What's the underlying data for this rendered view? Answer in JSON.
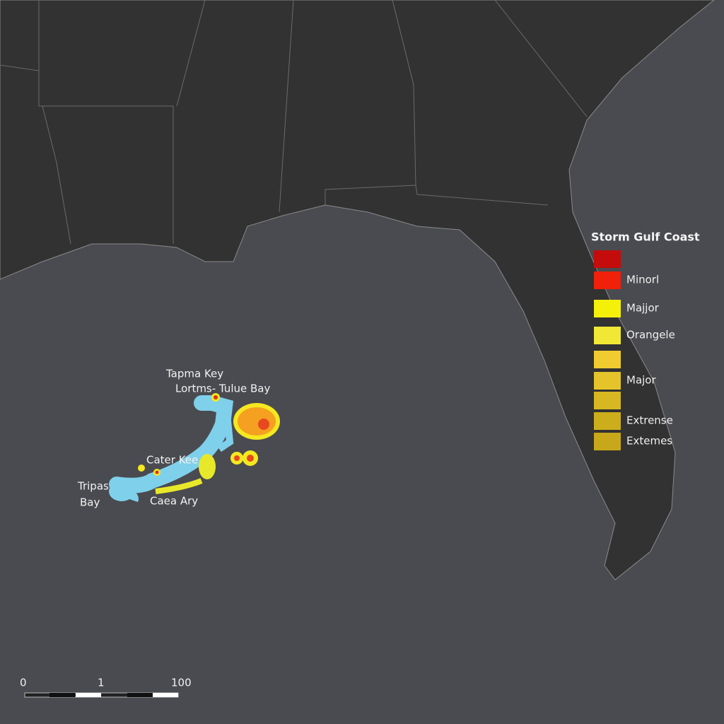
{
  "legend": {
    "title": "Storm Gulf Coast",
    "items": [
      {
        "color": "#c40c0c"
      },
      {
        "color": "#f0200a",
        "label": "Minorl"
      },
      {
        "color": "#f5f00a",
        "label": "Majjor"
      },
      {
        "color": "#f0e835",
        "label": "Orangele"
      },
      {
        "color": "#f0cc30"
      },
      {
        "color": "#e4c42a",
        "label": "Major"
      },
      {
        "color": "#d8b822"
      },
      {
        "color": "#ccae1c",
        "label": "Extrense"
      },
      {
        "color": "#c8a81a",
        "label": "Extemes"
      }
    ]
  },
  "places": [
    {
      "label": "Tapma Key"
    },
    {
      "label": "Lortms- Tulue Bay"
    },
    {
      "label": "Cater Kee"
    },
    {
      "label": "Tripas"
    },
    {
      "label": "Bay"
    },
    {
      "label": "Caea Ary"
    }
  ],
  "scale": {
    "labels": [
      "0",
      "1",
      "100"
    ]
  }
}
